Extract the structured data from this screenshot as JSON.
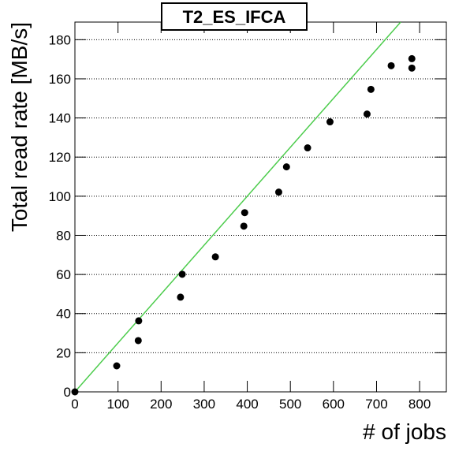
{
  "chart_data": {
    "type": "scatter",
    "title": "T2_ES_IFCA",
    "x_label": "# of jobs",
    "y_label": "Total read rate [MB/s]",
    "xlim": [
      0,
      862
    ],
    "ylim": [
      0,
      189
    ],
    "xticks": [
      0,
      100,
      200,
      300,
      400,
      500,
      600,
      700,
      800
    ],
    "yticks": [
      0,
      20,
      40,
      60,
      80,
      100,
      120,
      140,
      160,
      180
    ],
    "grid": true,
    "series": [
      {
        "color": "#000000",
        "x": [
          0,
          97,
          147,
          148,
          245,
          249,
          326,
          392,
          394,
          473,
          491,
          540,
          592,
          678,
          687,
          734,
          782,
          782
        ],
        "values": [
          0,
          13.3,
          26.2,
          36.3,
          48.4,
          60.1,
          69.0,
          84.7,
          91.6,
          102.1,
          115.0,
          124.7,
          138.0,
          142.0,
          154.6,
          166.7,
          165.5,
          170.3
        ]
      }
    ],
    "fit_line": {
      "color": "#4ccc4c",
      "x": [
        0,
        756
      ],
      "values": [
        0,
        189
      ]
    }
  }
}
